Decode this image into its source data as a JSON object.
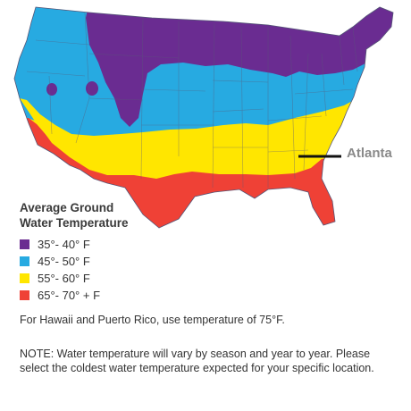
{
  "map": {
    "city_label": "Atlanta",
    "region_colors": {
      "ocean": "#ffffff",
      "state_border": "#5a5a7a"
    }
  },
  "legend": {
    "title_line1": "Average Ground",
    "title_line2": "Water Temperature",
    "items": [
      {
        "label": "35°- 40° F",
        "color": "#6a2c91"
      },
      {
        "label": "45°- 50° F",
        "color": "#27aae1"
      },
      {
        "label": "55°- 60° F",
        "color": "#ffe600"
      },
      {
        "label": "65°- 70° + F",
        "color": "#ef4136"
      }
    ]
  },
  "notes": {
    "hawaii": "For Hawaii and Puerto Rico, use temperature of 75°F.",
    "main": "NOTE: Water temperature will vary by season and year to year. Please select the coldest water temperature expected for your specific location."
  }
}
